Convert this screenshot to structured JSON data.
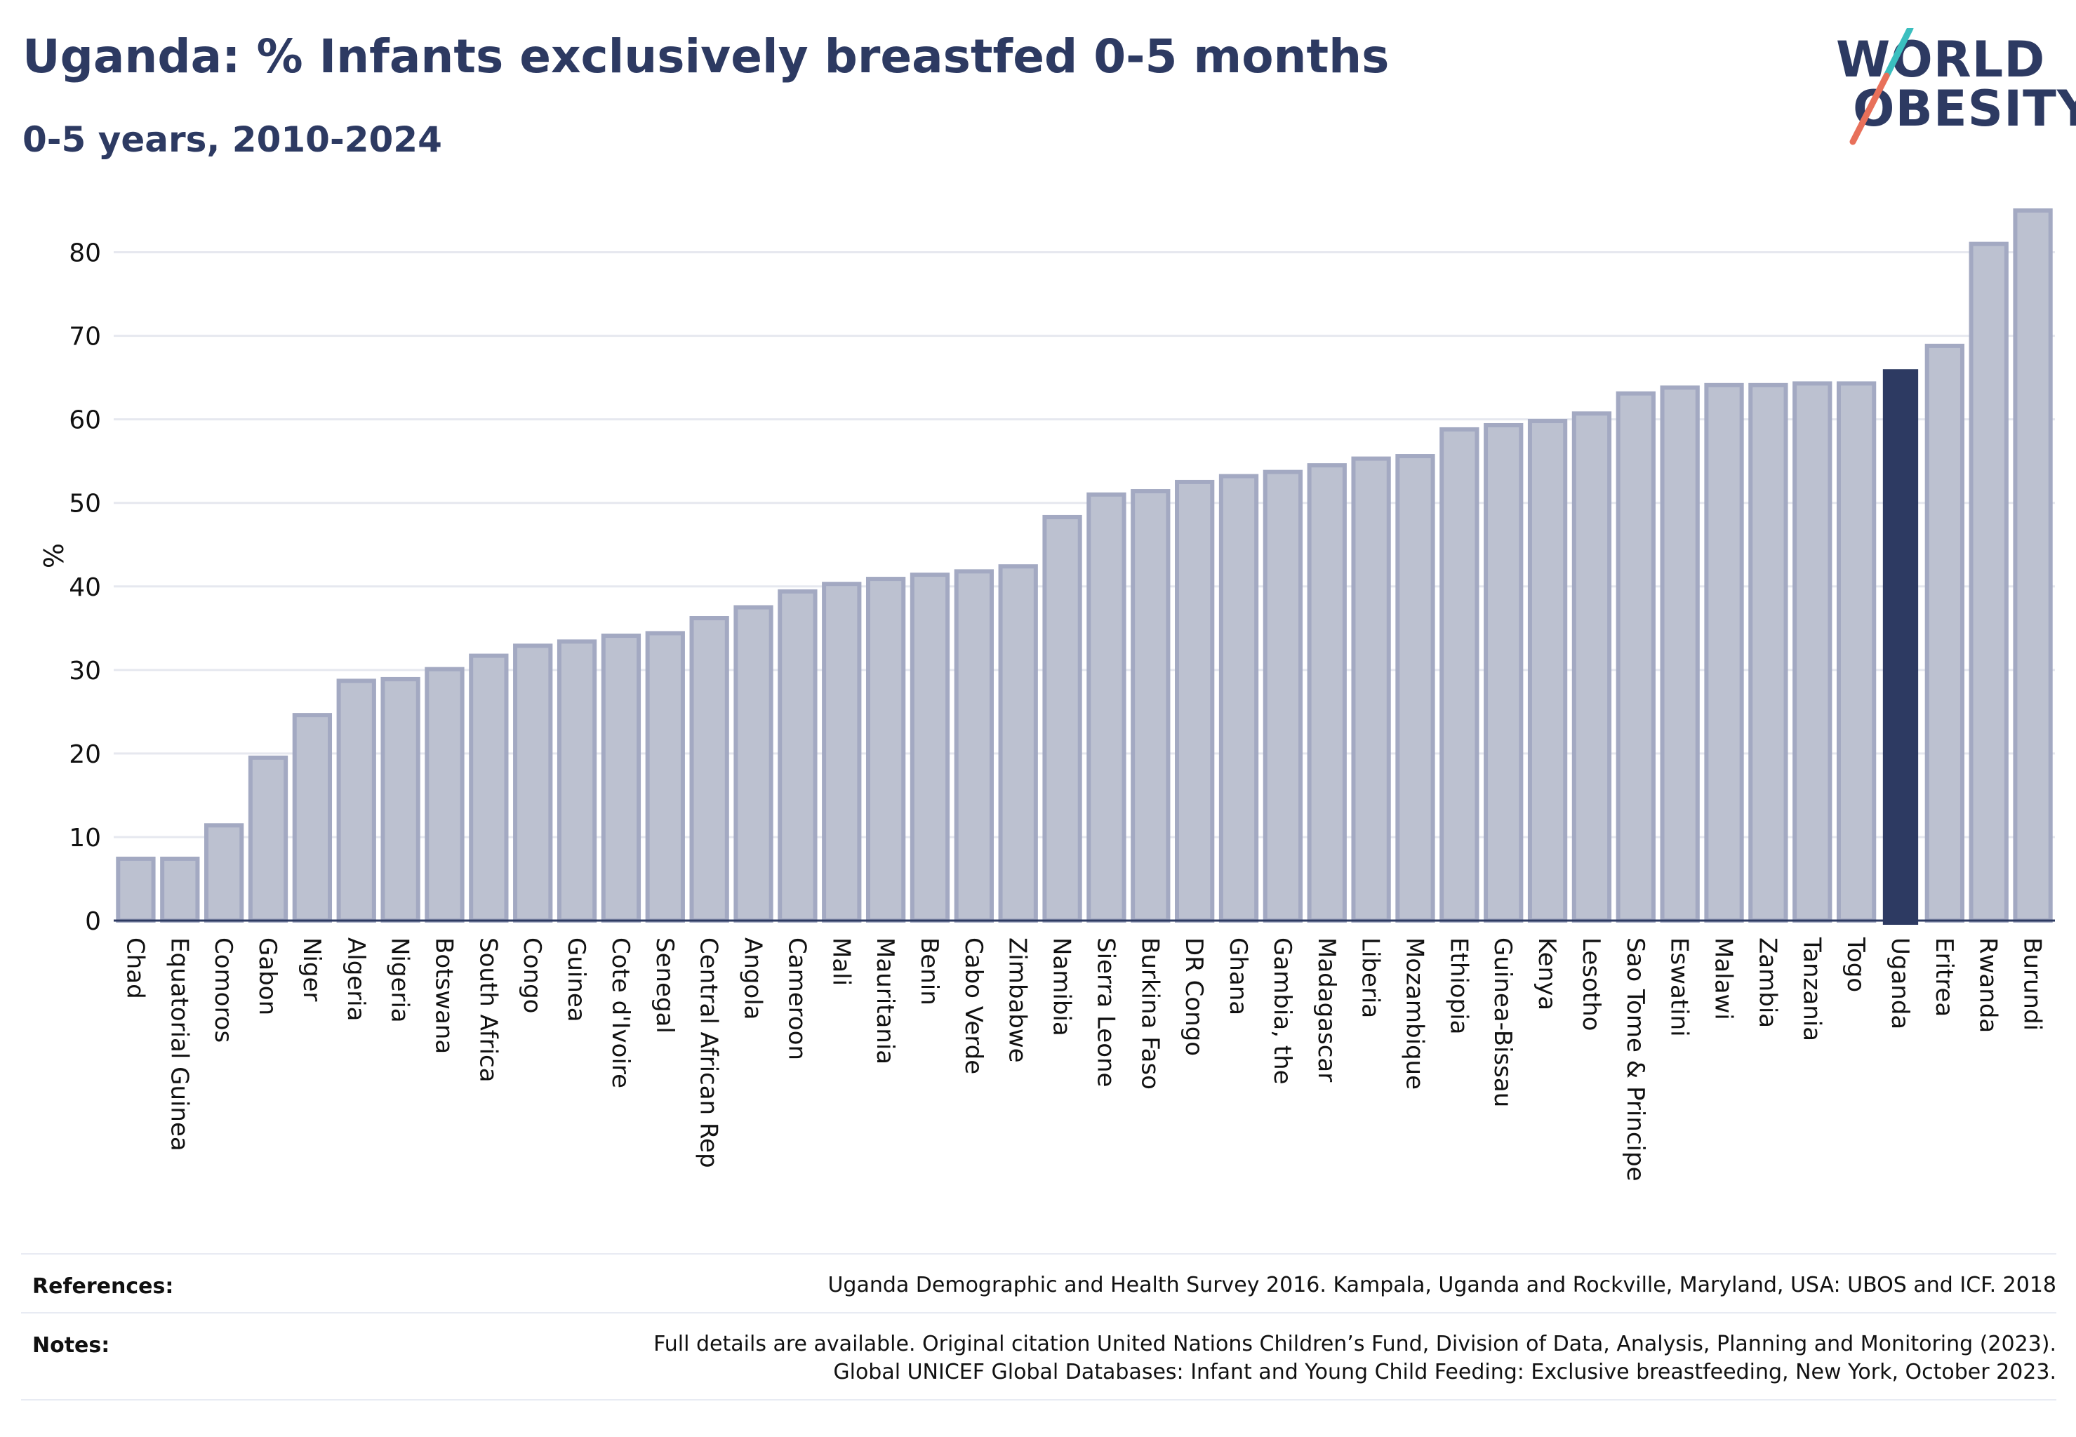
{
  "header": {
    "title": "Uganda: % Infants exclusively breastfed 0-5 months",
    "subtitle": "0-5 years, 2010-2024"
  },
  "logo": {
    "line1": "WORLD",
    "line2": "OBESITY",
    "slash_colors": [
      "#3bbfbf",
      "#e8705a"
    ],
    "icon": "world-obesity-logo-icon"
  },
  "colors": {
    "bar_fill": "#bcc1d0",
    "bar_stroke": "#a3a9c2",
    "highlight": "#2d3a62",
    "grid": "#e6e8ef",
    "axis": "#2d3a62",
    "text": "#111111"
  },
  "chart_data": {
    "type": "bar",
    "title": "Uganda: % Infants exclusively breastfed 0-5 months",
    "subtitle": "0-5 years, 2010-2024",
    "xlabel": "",
    "ylabel": "%",
    "ylim": [
      0,
      85
    ],
    "yticks": [
      0,
      10,
      20,
      30,
      40,
      50,
      60,
      70,
      80
    ],
    "grid": true,
    "highlight": "Uganda",
    "categories": [
      "Chad",
      "Equatorial Guinea",
      "Comoros",
      "Gabon",
      "Niger",
      "Algeria",
      "Nigeria",
      "Botswana",
      "South Africa",
      "Congo",
      "Guinea",
      "Cote d'Ivoire",
      "Senegal",
      "Central African Rep",
      "Angola",
      "Cameroon",
      "Mali",
      "Mauritania",
      "Benin",
      "Cabo Verde",
      "Zimbabwe",
      "Namibia",
      "Sierra Leone",
      "Burkina Faso",
      "DR Congo",
      "Ghana",
      "Gambia, the",
      "Madagascar",
      "Liberia",
      "Mozambique",
      "Ethiopia",
      "Guinea-Bissau",
      "Kenya",
      "Lesotho",
      "Sao Tome & Principe",
      "Eswatini",
      "Malawi",
      "Zambia",
      "Tanzania",
      "Togo",
      "Uganda",
      "Eritrea",
      "Rwanda",
      "Burundi"
    ],
    "values": [
      7.4,
      7.4,
      11.4,
      19.5,
      24.6,
      28.7,
      28.9,
      30.1,
      31.7,
      32.9,
      33.4,
      34.1,
      34.4,
      36.2,
      37.5,
      39.4,
      40.3,
      40.9,
      41.4,
      41.8,
      42.4,
      48.3,
      51.0,
      51.4,
      52.5,
      53.2,
      53.7,
      54.5,
      55.3,
      55.6,
      58.8,
      59.3,
      59.8,
      60.7,
      63.1,
      63.8,
      64.1,
      64.1,
      64.3,
      64.3,
      66.0,
      68.8,
      81.0,
      85.0
    ]
  },
  "footer": {
    "references_label": "References:",
    "references_text": "Uganda Demographic and Health Survey 2016. Kampala, Uganda and Rockville, Maryland, USA: UBOS and ICF. 2018",
    "notes_label": "Notes:",
    "notes_line1": "Full details are available. Original citation United Nations Children’s Fund, Division of Data, Analysis, Planning and Monitoring (2023).",
    "notes_line2": "Global UNICEF Global Databases: Infant and Young Child Feeding: Exclusive breastfeeding, New York, October 2023."
  }
}
